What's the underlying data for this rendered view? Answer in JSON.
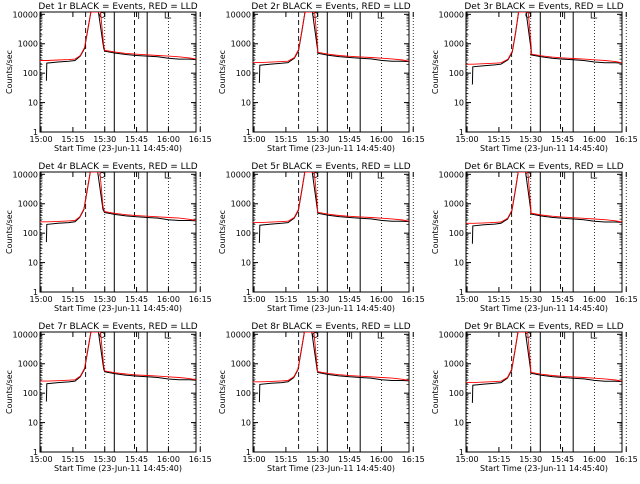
{
  "chart_data": {
    "type": "line",
    "x_ticks": [
      "15:00",
      "15:15",
      "15:30",
      "15:45",
      "16:00",
      "16:15"
    ],
    "y_ticks": [
      "1",
      "10",
      "100",
      "1000",
      "10000"
    ],
    "ylabel": "Counts/sec",
    "xlabel": "Start Time (23-Jun-11 14:45:40)",
    "y_scale": "log",
    "ylim": [
      1,
      12000
    ],
    "x_minutes_range": [
      14.5,
      88
    ],
    "dotted_lines_at": [
      "15:00",
      "15:30",
      "16:00",
      "16:15"
    ],
    "dashed_lines_at": [
      "15:21",
      "15:44"
    ],
    "solid_lines_at": [
      "15:34.5",
      "15:50"
    ],
    "panels": [
      {
        "title": "Det 1r BLACK = Events, RED = LLD",
        "shift": 0,
        "scale": 1.0
      },
      {
        "title": "Det 2r BLACK = Events, RED = LLD",
        "shift": 0.5,
        "scale": 0.85
      },
      {
        "title": "Det 3r BLACK = Events, RED = LLD",
        "shift": 0.8,
        "scale": 0.75
      },
      {
        "title": "Det 4r BLACK = Events, RED = LLD",
        "shift": -0.3,
        "scale": 0.9
      },
      {
        "title": "Det 5r BLACK = Events, RED = LLD",
        "shift": 0.4,
        "scale": 0.85
      },
      {
        "title": "Det 6r BLACK = Events, RED = LLD",
        "shift": 0.6,
        "scale": 0.8
      },
      {
        "title": "Det 7r BLACK = Events, RED = LLD",
        "shift": 0.0,
        "scale": 0.95
      },
      {
        "title": "Det 8r BLACK = Events, RED = LLD",
        "shift": 0.2,
        "scale": 0.9
      },
      {
        "title": "Det 9r BLACK = Events, RED = LLD",
        "shift": 0.5,
        "scale": 0.85
      }
    ],
    "series": [
      {
        "name": "BLACK = Events",
        "color": "#000000",
        "points": [
          [
            17.5,
            55
          ],
          [
            17.7,
            220
          ],
          [
            23,
            240
          ],
          [
            28,
            255
          ],
          [
            31,
            270
          ],
          [
            33.5,
            380
          ],
          [
            35.5,
            700
          ],
          [
            37,
            3000
          ],
          [
            38.5,
            12000
          ],
          [
            42,
            12000
          ],
          [
            44.5,
            700
          ],
          [
            45,
            560
          ],
          [
            50,
            480
          ],
          [
            55,
            430
          ],
          [
            60,
            400
          ],
          [
            65,
            380
          ],
          [
            70,
            360
          ],
          [
            75,
            320
          ],
          [
            80,
            300
          ],
          [
            85,
            300
          ],
          [
            88,
            290
          ]
        ]
      },
      {
        "name": "RED = LLD",
        "color": "#ff0000",
        "points": [
          [
            14.5,
            270
          ],
          [
            18,
            270
          ],
          [
            23,
            280
          ],
          [
            28,
            290
          ],
          [
            31,
            300
          ],
          [
            33.5,
            400
          ],
          [
            35.5,
            750
          ],
          [
            37,
            3200
          ],
          [
            38.5,
            12000
          ],
          [
            43,
            12000
          ],
          [
            44.5,
            900
          ],
          [
            45,
            600
          ],
          [
            50,
            520
          ],
          [
            55,
            470
          ],
          [
            60,
            440
          ],
          [
            65,
            420
          ],
          [
            70,
            400
          ],
          [
            75,
            380
          ],
          [
            80,
            360
          ],
          [
            85,
            330
          ],
          [
            88,
            300
          ]
        ]
      }
    ]
  }
}
